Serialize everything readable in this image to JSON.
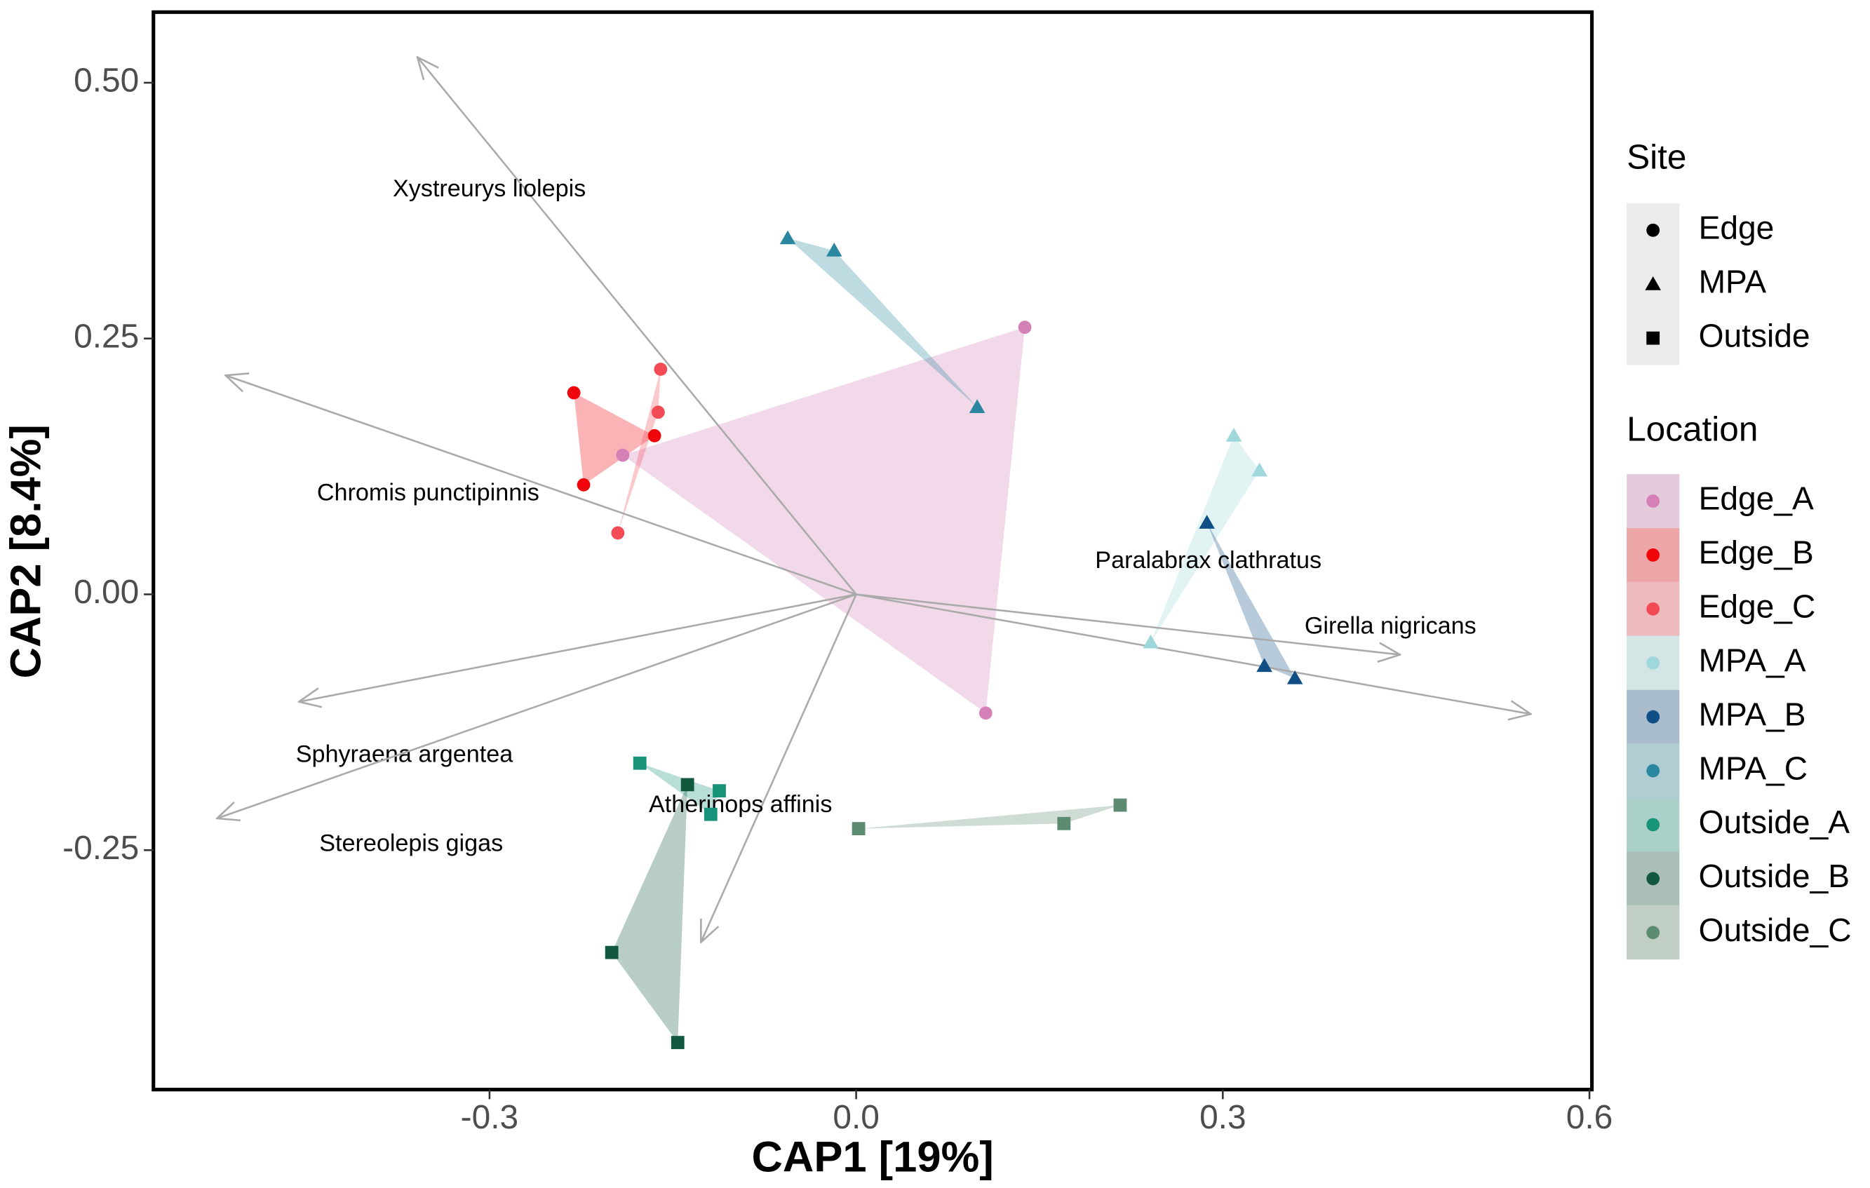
{
  "chart_data": {
    "type": "scatter",
    "x_label": "CAP1 [19%]",
    "y_label": "CAP2 [8.4%]",
    "xlim": [
      -0.575,
      0.602
    ],
    "ylim": [
      -0.484,
      0.569
    ],
    "xticks": [
      -0.3,
      {
        "value": 0.0,
        "label": "0.0"
      },
      0.3,
      0.6
    ],
    "yticks": [
      -0.25,
      {
        "value": 0.0,
        "label": "0.00"
      },
      0.25,
      {
        "value": 0.5,
        "label": "0.50"
      }
    ],
    "shape_legend": {
      "title": "Site",
      "items": [
        {
          "name": "Edge",
          "shape": "circle"
        },
        {
          "name": "MPA",
          "shape": "triangle"
        },
        {
          "name": "Outside",
          "shape": "square"
        }
      ]
    },
    "legend_title": "Location",
    "series": [
      {
        "name": "Edge_A",
        "color": "#d580b6",
        "shape": "circle",
        "x": [
          0.138,
          -0.191,
          0.106
        ],
        "values": [
          0.261,
          0.136,
          -0.116
        ]
      },
      {
        "name": "Edge_B",
        "color": "#f0050a",
        "shape": "circle",
        "x": [
          -0.231,
          -0.223,
          -0.165
        ],
        "values": [
          0.197,
          0.107,
          0.155
        ]
      },
      {
        "name": "Edge_C",
        "color": "#f24b55",
        "shape": "circle",
        "x": [
          -0.16,
          -0.162,
          -0.195
        ],
        "values": [
          0.22,
          0.178,
          0.06
        ]
      },
      {
        "name": "MPA_A",
        "color": "#9fd8db",
        "shape": "triangle",
        "x": [
          0.309,
          0.33,
          0.241
        ],
        "values": [
          0.155,
          0.121,
          -0.047
        ]
      },
      {
        "name": "MPA_B",
        "color": "#0f4f85",
        "shape": "triangle",
        "x": [
          0.287,
          0.334,
          0.359
        ],
        "values": [
          0.07,
          -0.07,
          -0.082
        ]
      },
      {
        "name": "MPA_C",
        "color": "#2b87a0",
        "shape": "triangle",
        "x": [
          -0.056,
          -0.018,
          0.099
        ],
        "values": [
          0.348,
          0.336,
          0.183
        ]
      },
      {
        "name": "Outside_A",
        "color": "#17937a",
        "shape": "square",
        "x": [
          -0.177,
          -0.112,
          -0.119
        ],
        "values": [
          -0.165,
          -0.192,
          -0.215
        ]
      },
      {
        "name": "Outside_B",
        "color": "#12583f",
        "shape": "square",
        "x": [
          -0.138,
          -0.2,
          -0.146
        ],
        "values": [
          -0.186,
          -0.35,
          -0.438
        ]
      },
      {
        "name": "Outside_C",
        "color": "#5c8b72",
        "shape": "square",
        "x": [
          0.002,
          0.17,
          0.216
        ],
        "values": [
          -0.229,
          -0.224,
          -0.206
        ]
      }
    ],
    "vectors": [
      {
        "name": "Xystreurys liolepis",
        "x": -0.359,
        "y": 0.525
      },
      {
        "name": "Chromis punctipinnis",
        "x": -0.516,
        "y": 0.214
      },
      {
        "name": "Sphyraena argentea",
        "x": -0.456,
        "y": -0.105
      },
      {
        "name": "Stereolepis gigas",
        "x": -0.523,
        "y": -0.219
      },
      {
        "name": "Atherinops affinis",
        "x": -0.127,
        "y": -0.34
      },
      {
        "name": "Paralabrax clathratus",
        "x": 0.552,
        "y": -0.117
      },
      {
        "name": "Girella nigricans",
        "x": 0.445,
        "y": -0.059
      }
    ]
  }
}
